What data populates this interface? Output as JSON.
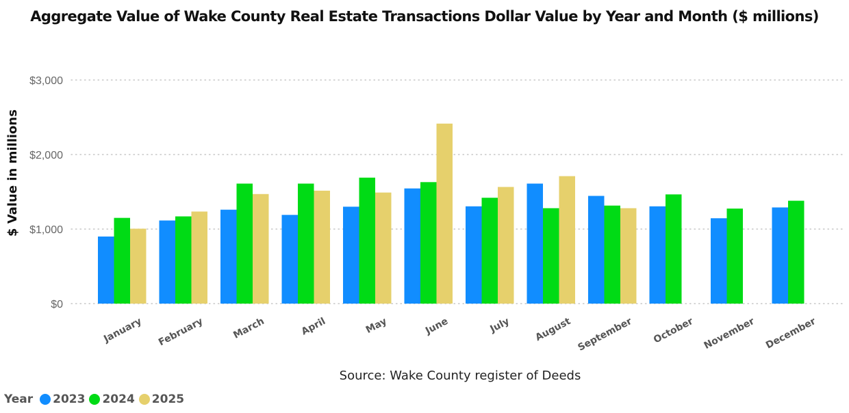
{
  "chart_data": {
    "type": "bar",
    "title": "Aggregate Value of Wake County Real Estate Transactions Dollar Value by Year and Month ($ millions)",
    "ylabel": "$ Value in millions",
    "xlabel": "",
    "source": "Source: Wake County register of Deeds",
    "ylim": [
      0,
      3000
    ],
    "yticks": [
      0,
      1000,
      2000,
      3000
    ],
    "ytick_labels": [
      "$0",
      "$1,000",
      "$2,000",
      "$3,000"
    ],
    "grid": true,
    "legend_title": "Year",
    "legend_position": "bottom-left",
    "categories": [
      "January",
      "February",
      "March",
      "April",
      "May",
      "June",
      "July",
      "August",
      "September",
      "October",
      "November",
      "December"
    ],
    "series": [
      {
        "name": "2023",
        "color": "#118DFF",
        "values": [
          900,
          1115,
          1260,
          1190,
          1300,
          1545,
          1305,
          1610,
          1445,
          1305,
          1145,
          1290
        ]
      },
      {
        "name": "2024",
        "color": "#00DB15",
        "values": [
          1150,
          1170,
          1610,
          1610,
          1690,
          1630,
          1420,
          1280,
          1315,
          1465,
          1275,
          1380
        ]
      },
      {
        "name": "2025",
        "color": "#E6D06C",
        "values": [
          1005,
          1235,
          1470,
          1515,
          1490,
          2415,
          1565,
          1710,
          1280,
          null,
          null,
          null
        ]
      }
    ]
  }
}
